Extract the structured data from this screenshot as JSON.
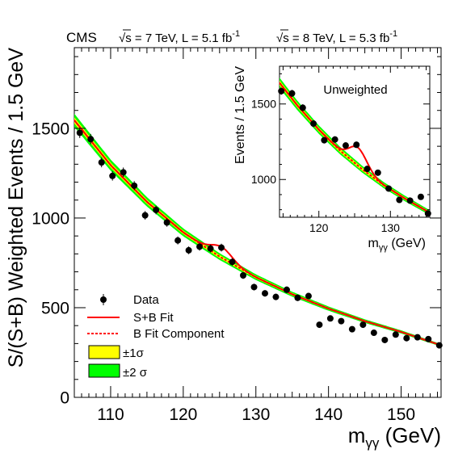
{
  "header": {
    "experiment": "CMS",
    "label_7tev": "√s = 7 TeV, L = 5.1 fb",
    "label_8tev": "√s = 8 TeV, L = 5.3 fb",
    "sup": "-1"
  },
  "colors": {
    "sb_fit": "#ff0000",
    "b_fit": "#ff0000",
    "band_1sigma": "#ffff00",
    "band_2sigma": "#00ff00",
    "data": "#000000"
  },
  "chart_data": [
    {
      "type": "scatter",
      "xlabel_main": "m",
      "xlabel_sub": "γγ",
      "xlabel_unit": " (GeV)",
      "ylabel": "S/(S+B) Weighted Events / 1.5 GeV",
      "xlim": [
        105,
        155.5
      ],
      "ylim": [
        0,
        1950
      ],
      "x_ticks": [
        110,
        120,
        130,
        140,
        150
      ],
      "y_ticks": [
        0,
        500,
        1000,
        1500
      ],
      "x_tick_labels": [
        "110",
        "120",
        "130",
        "140",
        "150"
      ],
      "y_tick_labels": [
        "0",
        "500",
        "1000",
        "1500"
      ],
      "legend": {
        "placement": "bottom-left",
        "entries": [
          {
            "label": "Data",
            "style": "data"
          },
          {
            "label": "S+B Fit",
            "style": "solid-line"
          },
          {
            "label": "B Fit Component",
            "style": "dashed-line"
          },
          {
            "label": "±1σ",
            "style": "band1"
          },
          {
            "label": "±2 σ",
            "style": "band2"
          }
        ]
      },
      "series": [
        {
          "name": "Data",
          "x": [
            105.75,
            107.25,
            108.75,
            110.25,
            111.75,
            113.25,
            114.75,
            116.25,
            117.75,
            119.25,
            120.75,
            122.25,
            123.75,
            125.25,
            126.75,
            128.25,
            129.75,
            131.25,
            132.75,
            134.25,
            135.75,
            137.25,
            138.75,
            140.25,
            141.75,
            143.25,
            144.75,
            146.25,
            147.75,
            149.25,
            150.75,
            152.25,
            153.75,
            155.25
          ],
          "y": [
            1475,
            1440,
            1310,
            1235,
            1255,
            1180,
            1015,
            1045,
            975,
            875,
            820,
            840,
            830,
            835,
            755,
            680,
            615,
            580,
            560,
            600,
            555,
            565,
            405,
            440,
            425,
            380,
            405,
            360,
            320,
            350,
            330,
            335,
            325,
            290
          ]
        }
      ],
      "background_fit": {
        "x": [
          105,
          110,
          115,
          120,
          125,
          130,
          135,
          140,
          145,
          150,
          155.5
        ],
        "y": [
          1545,
          1295,
          1090,
          920,
          785,
          670,
          575,
          495,
          425,
          365,
          290
        ]
      },
      "signal_bump": {
        "mass": 125.3,
        "amplitude": 60,
        "width": 1.4
      }
    },
    {
      "type": "scatter",
      "title": "Unweighted",
      "xlabel_main": "m",
      "xlabel_sub": "γγ",
      "xlabel_unit": " (GeV)",
      "ylabel": "Events / 1.5 GeV",
      "xlim": [
        114.5,
        135.5
      ],
      "ylim": [
        750,
        1750
      ],
      "x_ticks": [
        120,
        130
      ],
      "y_ticks": [
        1000,
        1500
      ],
      "x_tick_labels": [
        "120",
        "130"
      ],
      "y_tick_labels": [
        "1000",
        "1500"
      ],
      "series": [
        {
          "name": "Data",
          "x": [
            114.75,
            116.25,
            117.75,
            119.25,
            120.75,
            122.25,
            123.75,
            125.25,
            126.75,
            128.25,
            129.75,
            131.25,
            132.75,
            134.25,
            135.25
          ],
          "y": [
            1585,
            1570,
            1475,
            1370,
            1260,
            1265,
            1225,
            1230,
            1070,
            1045,
            940,
            865,
            860,
            885,
            775
          ]
        }
      ],
      "background_fit": {
        "x": [
          114.5,
          117,
          120,
          123,
          126,
          129,
          132,
          135.5
        ],
        "y": [
          1640,
          1490,
          1330,
          1190,
          1070,
          965,
          875,
          780
        ]
      },
      "signal_bump": {
        "mass": 125.5,
        "amplitude": 120,
        "width": 1.2
      }
    }
  ]
}
